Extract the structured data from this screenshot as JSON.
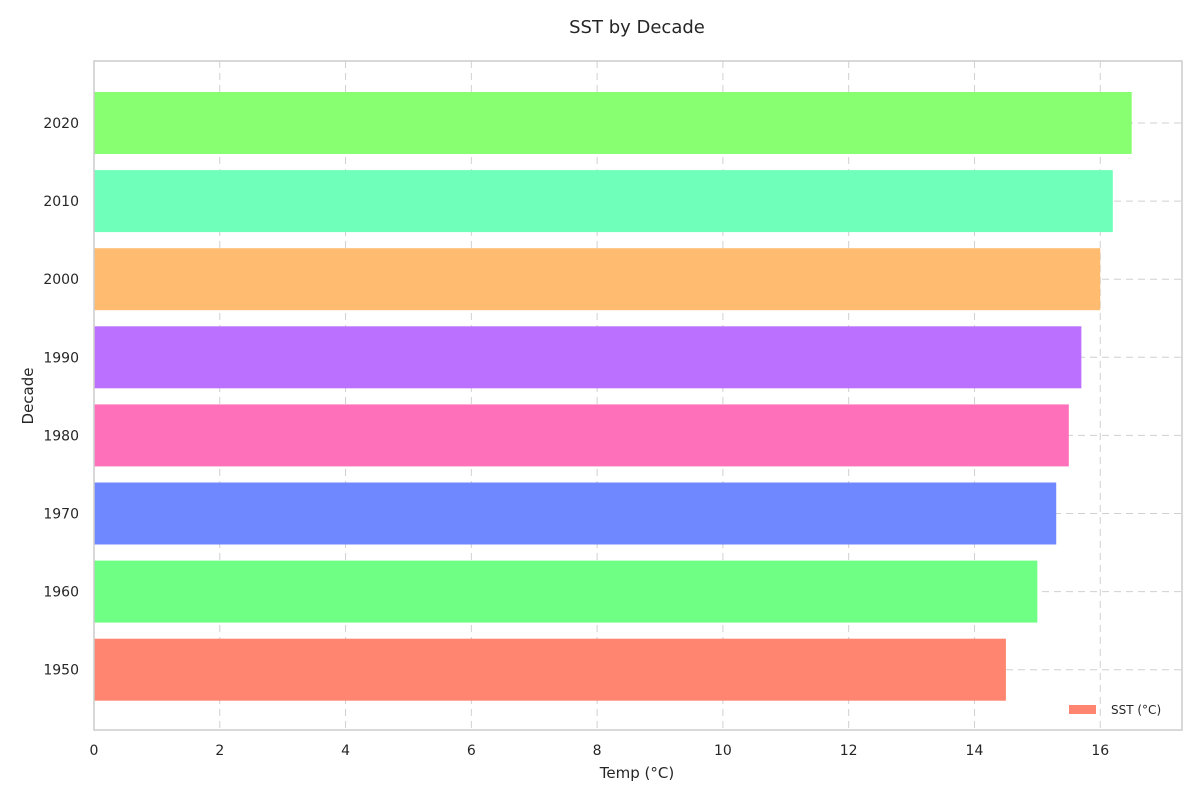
{
  "chart_data": {
    "type": "bar",
    "orientation": "horizontal",
    "title": "SST by Decade",
    "xlabel": "Temp (°C)",
    "ylabel": "Decade",
    "categories": [
      "1950",
      "1960",
      "1970",
      "1980",
      "1990",
      "2000",
      "2010",
      "2020"
    ],
    "series": [
      {
        "name": "SST (°C)",
        "values": [
          14.5,
          15.0,
          15.3,
          15.5,
          15.7,
          16.0,
          16.2,
          16.5
        ]
      }
    ],
    "bar_colors": [
      "#ff8570",
      "#70ff85",
      "#7088ff",
      "#ff70bb",
      "#bb70ff",
      "#ffbb70",
      "#70ffbb",
      "#88ff70"
    ],
    "xlim": [
      0,
      17.3
    ],
    "xticks": [
      0,
      2,
      4,
      6,
      8,
      10,
      12,
      14,
      16
    ],
    "grid": true,
    "legend": {
      "position": "bottom-right",
      "label": "SST (°C)",
      "color": "#ff8570"
    }
  }
}
